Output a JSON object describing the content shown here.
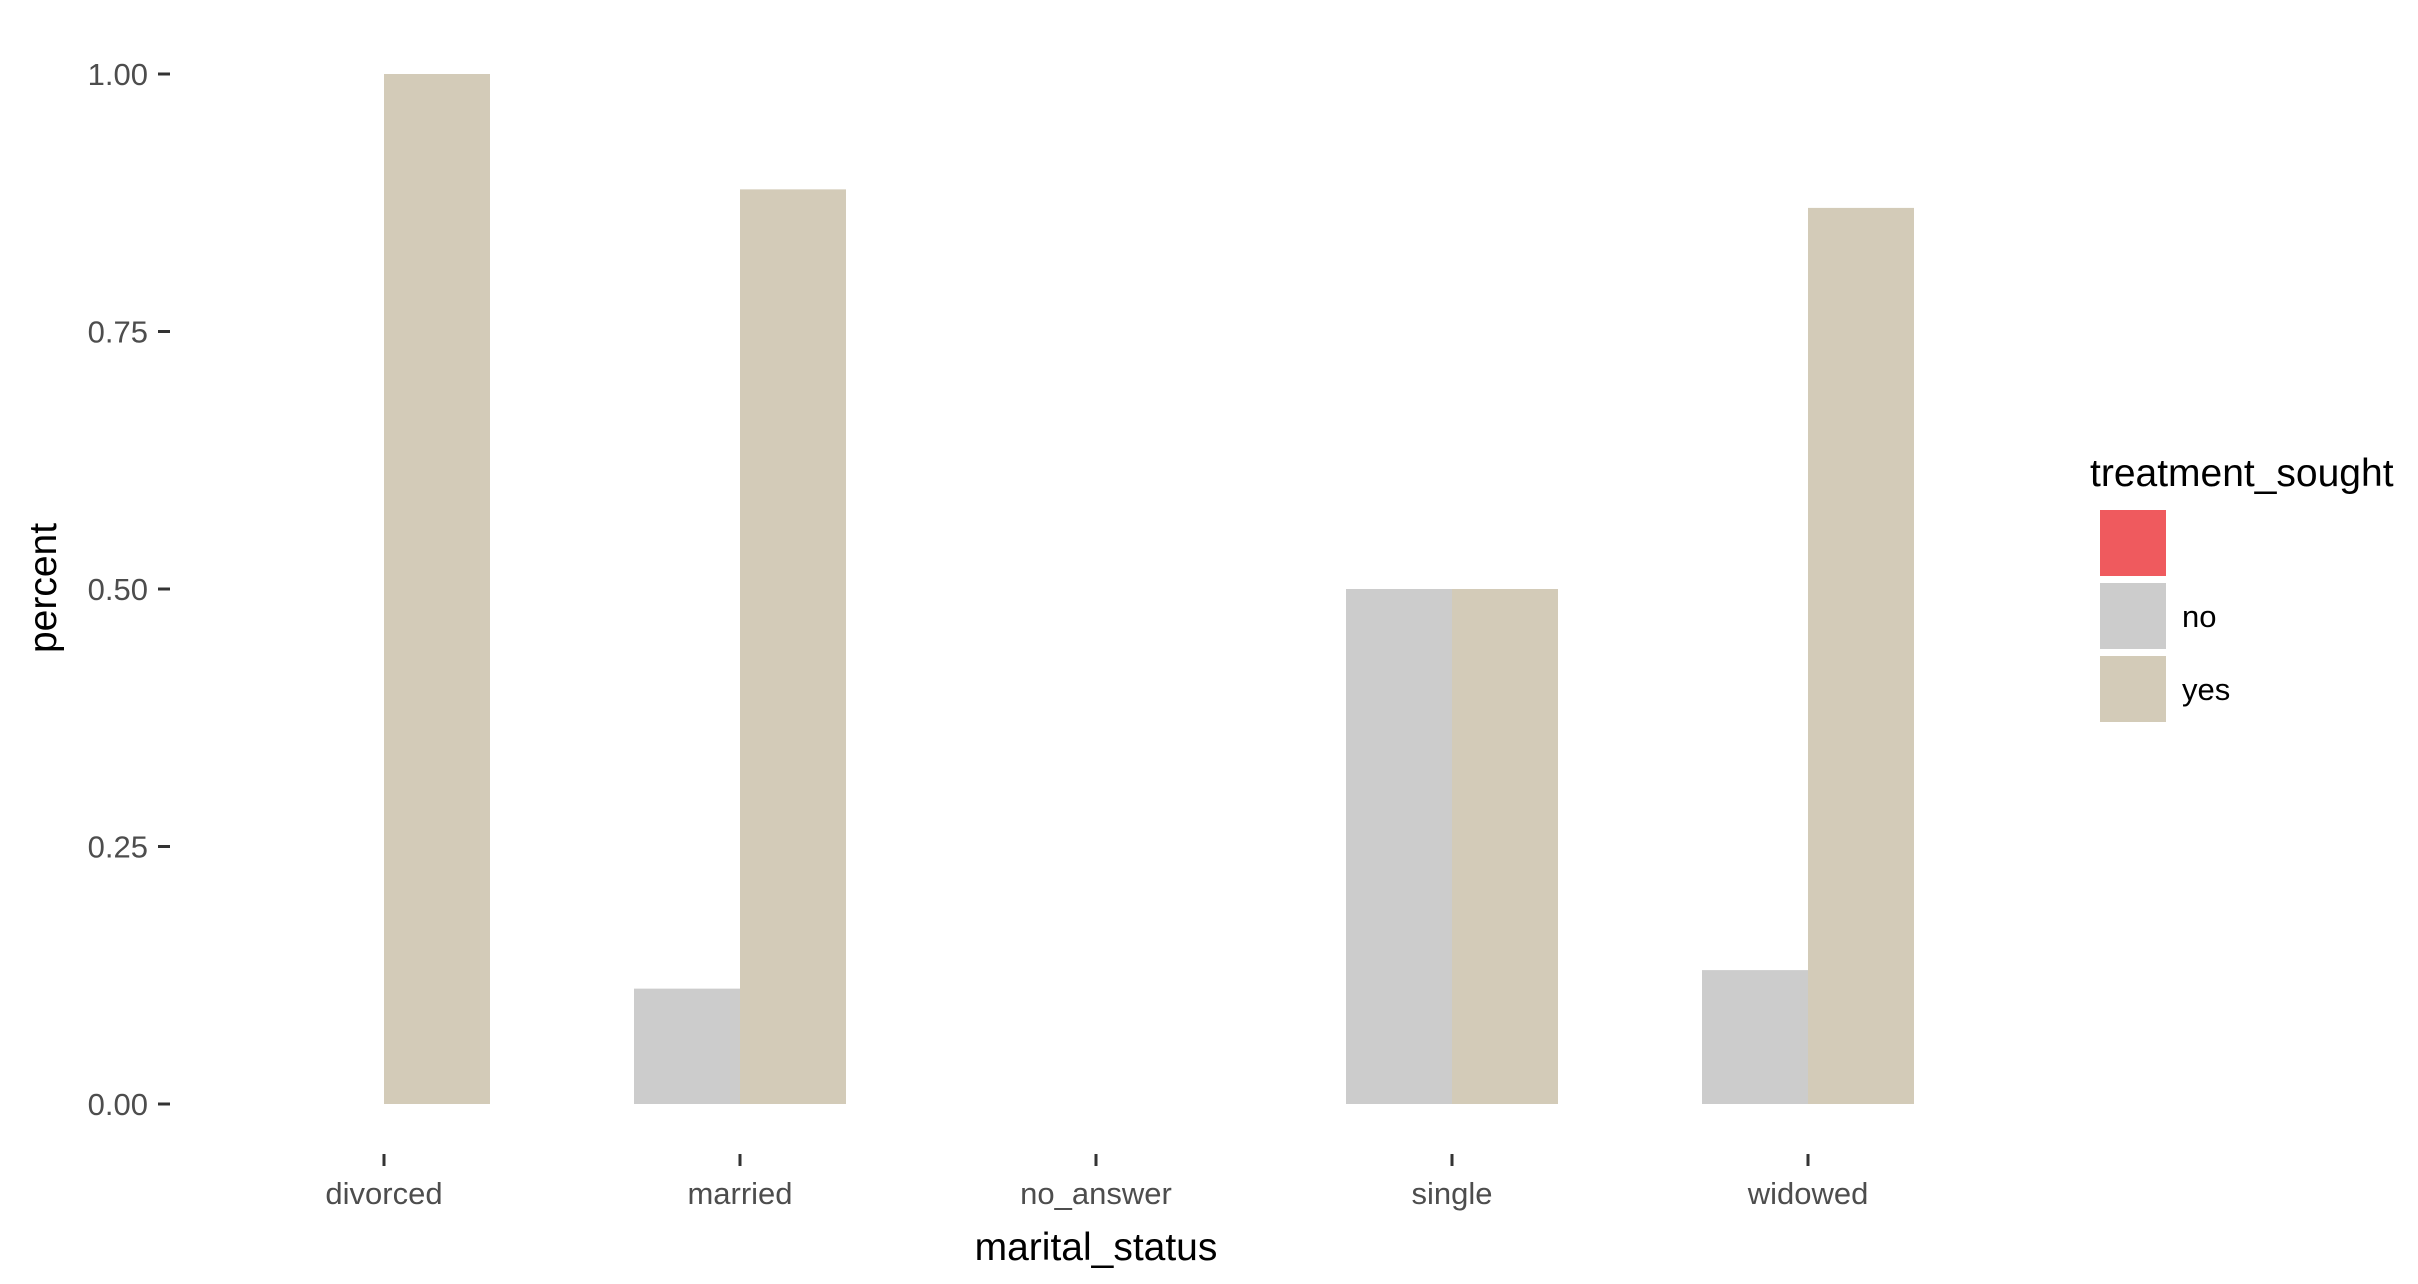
{
  "chart_data": {
    "type": "bar",
    "categories": [
      "divorced",
      "married",
      "no_answer",
      "single",
      "widowed"
    ],
    "series": [
      {
        "name": "",
        "color": "#ef5a5e",
        "values": [
          0,
          0,
          0,
          0,
          0
        ]
      },
      {
        "name": "no",
        "color": "#cccccc",
        "values": [
          0,
          0.112,
          0,
          0.5,
          0.13
        ]
      },
      {
        "name": "yes",
        "color": "#d3cbb8",
        "values": [
          1.0,
          0.888,
          0,
          0.5,
          0.87
        ]
      }
    ],
    "title": "",
    "xlabel": "marital_status",
    "ylabel": "percent",
    "ylim": [
      0,
      1
    ],
    "yticks": [
      0,
      0.25,
      0.5,
      0.75,
      1.0
    ],
    "ytick_labels": [
      "0.00",
      "0.25",
      "0.50",
      "0.75",
      "1.00"
    ],
    "grid": false,
    "legend": {
      "title": "treatment_sought",
      "placement": "right",
      "entries": [
        "",
        "no",
        "yes"
      ]
    }
  }
}
